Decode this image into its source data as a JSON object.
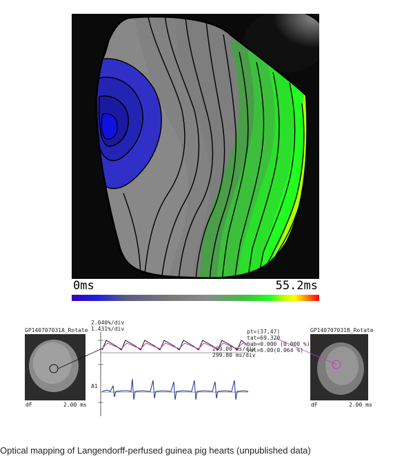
{
  "activation_map": {
    "scale_min_label": "0ms",
    "scale_max_label": "55.2ms"
  },
  "left_thumbnail": {
    "title": "GP140707031A_Rotate",
    "corner_left": "dF",
    "corner_right": "2.00 ms"
  },
  "right_thumbnail": {
    "title": "GP140707031B_Rotate",
    "corner_left": "dF",
    "corner_right": "2.00 ms"
  },
  "trace_panel": {
    "scale_line_1": "2.040%/div",
    "scale_line_2": "1.431%/div",
    "readout_pt": "pt=(37,47)",
    "readout_line_2": "tat=69.320",
    "readout_line_3": "bab=0.000 (0.000 %)",
    "readout_val": "val=6.00(0.064 %)",
    "time_div_1": "299.00 ms/div",
    "time_div_2": "299.80 ms/div",
    "channel_label": "A1"
  },
  "caption": "Optical mapping of Langendorff-perfused guinea pig hearts (unpublished data)",
  "colors": {
    "trace_black": "#111111",
    "trace_magenta": "#cc33cc",
    "ecg_blue": "#1a2a9a"
  }
}
